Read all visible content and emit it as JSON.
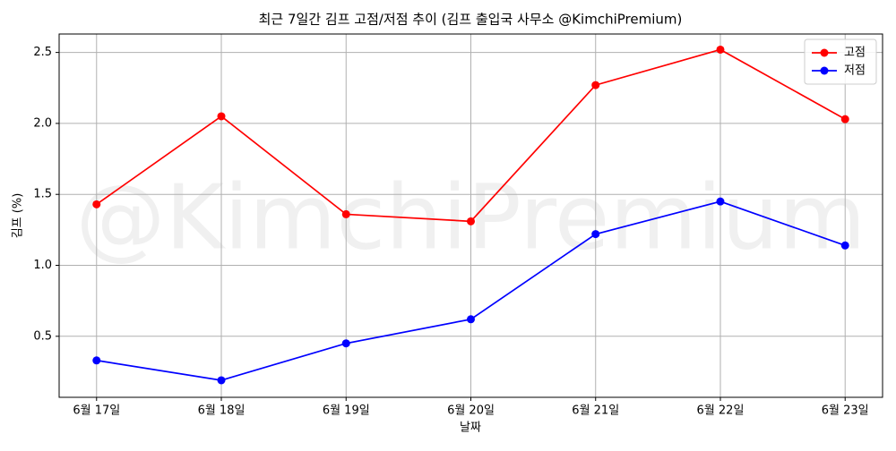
{
  "chart_data": {
    "type": "line",
    "title": "최근 7일간 김프 고점/저점 추이 (김프 출입국 사무소 @KimchiPremium)",
    "watermark": "@KimchiPremium",
    "xlabel": "날짜",
    "ylabel": "김프 (%)",
    "categories": [
      "6월 17일",
      "6월 18일",
      "6월 19일",
      "6월 20일",
      "6월 21일",
      "6월 22일",
      "6월 23일"
    ],
    "series": [
      {
        "name": "고점",
        "color": "#ff0000",
        "values": [
          1.43,
          2.05,
          1.36,
          1.31,
          2.27,
          2.52,
          2.03
        ]
      },
      {
        "name": "저점",
        "color": "#0000ff",
        "values": [
          0.33,
          0.19,
          0.45,
          0.62,
          1.22,
          1.45,
          1.14
        ]
      }
    ],
    "ylim": [
      0.07,
      2.63
    ],
    "yticks": [
      0.5,
      {
        "value": 1.0,
        "label": "1.0"
      },
      1.5,
      {
        "value": 2.0,
        "label": "2.0"
      },
      2.5
    ],
    "grid": true,
    "legend": "upper right"
  }
}
